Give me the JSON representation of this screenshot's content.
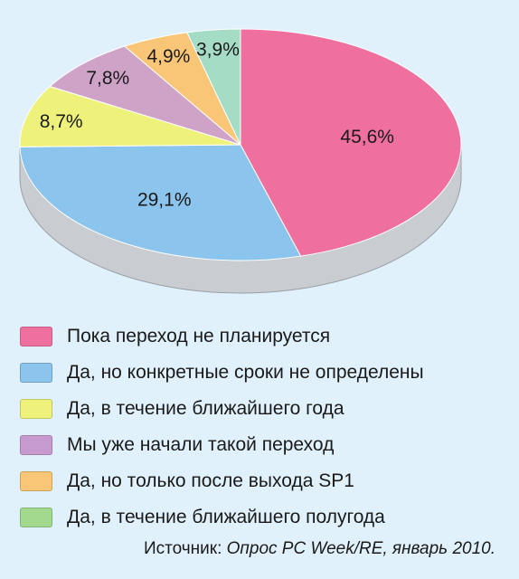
{
  "chart_data": {
    "type": "pie",
    "title": "",
    "categories": [
      "Пока переход не планируется",
      "Да, но конкретные сроки не определены",
      "Да, в течение ближайшего года",
      "Мы уже начали такой переход",
      "Да, но только после выхода SP1",
      "Да, в течение ближайшего полугода"
    ],
    "values": [
      45.6,
      29.1,
      8.7,
      7.8,
      4.9,
      3.9
    ],
    "value_labels": [
      "45,6%",
      "29,1%",
      "8,7%",
      "7,8%",
      "4,9%",
      "3,9%"
    ],
    "colors": [
      "#ef6f9f",
      "#8bc4ec",
      "#eef27a",
      "#cfa3c8",
      "#f8c676",
      "#a5dcc6"
    ],
    "legend_colors": [
      "#ef6f9f",
      "#8bc4ec",
      "#eef27a",
      "#c79ad0",
      "#f8c676",
      "#a3d98f"
    ],
    "legend_placement": "bottom",
    "style": "3d-tilted"
  },
  "source": {
    "prefix": "Источник: ",
    "text": "Опрос PC Week/RE, январь 2010."
  }
}
